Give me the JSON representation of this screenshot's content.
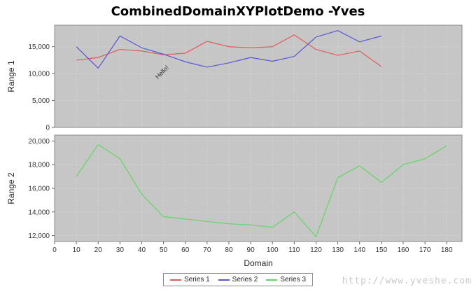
{
  "watermark": "http://www.yveshe.com",
  "colors": {
    "plot_bg": "#c6c6c6",
    "grid": "#ffffff",
    "plot_border": "#8a8a8a",
    "tick": "#666666",
    "tick_label": "#333333",
    "annotation_text": "#333333"
  },
  "chart_data": {
    "type": "line",
    "title": "CombinedDomainXYPlotDemo -Yves",
    "xlabel": "Domain",
    "xlim": [
      0,
      187
    ],
    "x_ticks": [
      0,
      10,
      20,
      30,
      40,
      50,
      60,
      70,
      80,
      90,
      100,
      110,
      120,
      130,
      140,
      150,
      160,
      170,
      180
    ],
    "legend": [
      "Series 1",
      "Series 2",
      "Series 3"
    ],
    "legend_position": "bottom",
    "grid": "faint white dotted",
    "subplots": [
      {
        "ylabel": "Range 1",
        "ylim": [
          0,
          19000
        ],
        "y_ticks": [
          0,
          5000,
          10000,
          15000
        ],
        "annotation": {
          "text": "Hello!",
          "x": 50,
          "y": 10000,
          "rotation": -45
        },
        "series": [
          {
            "name": "Series 1",
            "color": "#e15b5b",
            "x": [
              10,
              20,
              30,
              40,
              50,
              60,
              70,
              80,
              90,
              100,
              110,
              120,
              130,
              140,
              150
            ],
            "y": [
              12500,
              13000,
              14500,
              14200,
              13500,
              13800,
              16000,
              15000,
              14800,
              15000,
              17200,
              14500,
              13400,
              14200,
              11300
            ]
          },
          {
            "name": "Series 2",
            "color": "#5656d6",
            "x": [
              10,
              20,
              30,
              40,
              50,
              60,
              70,
              80,
              90,
              100,
              110,
              120,
              130,
              140,
              150
            ],
            "y": [
              15000,
              11000,
              17000,
              14800,
              13600,
              12200,
              11200,
              12000,
              13000,
              12300,
              13200,
              16800,
              18000,
              15900,
              17000
            ]
          }
        ]
      },
      {
        "ylabel": "Range 2",
        "ylim": [
          11500,
          20500
        ],
        "y_ticks": [
          12000,
          14000,
          16000,
          18000,
          20000
        ],
        "series": [
          {
            "name": "Series 3",
            "color": "#63d663",
            "x": [
              10,
              20,
              30,
              40,
              50,
              60,
              70,
              80,
              90,
              100,
              110,
              120,
              130,
              140,
              150,
              160,
              170,
              180
            ],
            "y": [
              17000,
              19700,
              18500,
              15500,
              13600,
              13400,
              13200,
              13000,
              12900,
              12700,
              14000,
              11900,
              16900,
              17900,
              16500,
              18000,
              18500,
              19600
            ]
          }
        ]
      }
    ]
  }
}
